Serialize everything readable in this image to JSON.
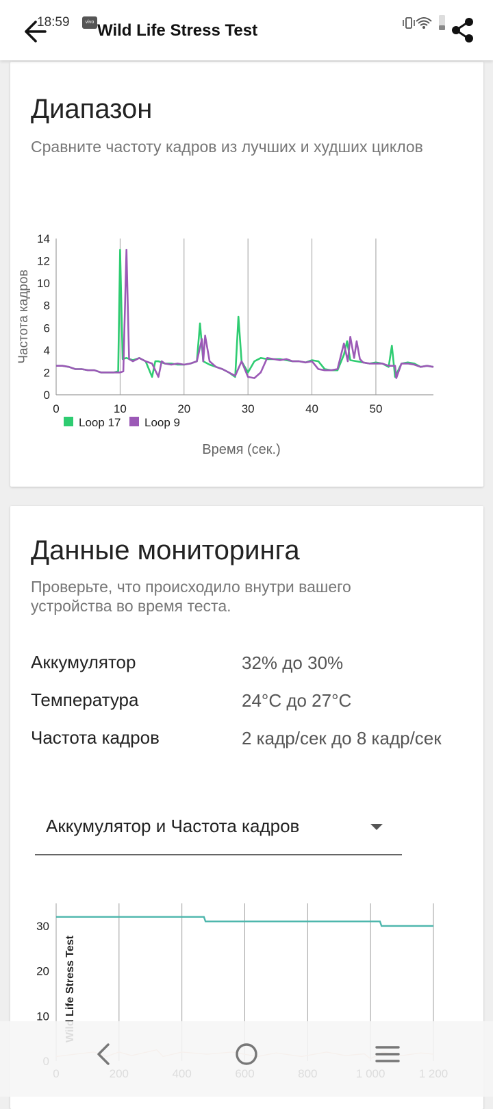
{
  "status_bar": {
    "time": "18:59",
    "badge": "vivo"
  },
  "app_bar": {
    "title": "Wild Life Stress Test"
  },
  "range_card": {
    "title": "Диапазон",
    "subtitle": "Сравните частоту кадров из лучших и худших циклов"
  },
  "monitoring_card": {
    "title": "Данные мониторинга",
    "subtitle": "Проверьте, что происходило внутри вашего устройства во время теста.",
    "rows": [
      {
        "label": "Аккумулятор",
        "value": "32% до 30%"
      },
      {
        "label": "Температура",
        "value": "24°C до 27°C"
      },
      {
        "label": "Частота кадров",
        "value": "2 кадр/сек до 8 кадр/сек"
      }
    ],
    "dropdown": {
      "selected": "Аккумулятор и Частота кадров"
    }
  },
  "colors": {
    "loop17": "#2ecc71",
    "loop9": "#9b59b6",
    "battery": "#4db6ac",
    "fps_overlay": "#f6c7a8"
  },
  "chart_data": [
    {
      "type": "line",
      "xlabel": "Время (сек.)",
      "ylabel": "Частота кадров",
      "xlim": [
        0,
        59
      ],
      "ylim": [
        0,
        14
      ],
      "xticks": [
        0,
        10,
        20,
        30,
        40,
        50
      ],
      "yticks": [
        0,
        2,
        4,
        6,
        8,
        10,
        12,
        14
      ],
      "legend_position": "bottom-left",
      "grid": "vertical",
      "series": [
        {
          "name": "Loop 17",
          "color": "#2ecc71",
          "points": [
            [
              0,
              2.6
            ],
            [
              1,
              2.6
            ],
            [
              2,
              2.5
            ],
            [
              3,
              2.3
            ],
            [
              4,
              2.3
            ],
            [
              5,
              2.2
            ],
            [
              6,
              2.2
            ],
            [
              7,
              2.0
            ],
            [
              8,
              2.0
            ],
            [
              9,
              2.0
            ],
            [
              9.7,
              2.1
            ],
            [
              10,
              13.0
            ],
            [
              10.4,
              3.2
            ],
            [
              11,
              3.3
            ],
            [
              12,
              3.1
            ],
            [
              13,
              3.3
            ],
            [
              14,
              3.0
            ],
            [
              15,
              1.6
            ],
            [
              15.5,
              3.0
            ],
            [
              16,
              3.0
            ],
            [
              17,
              2.8
            ],
            [
              18,
              2.8
            ],
            [
              19,
              2.7
            ],
            [
              20,
              2.7
            ],
            [
              21,
              2.8
            ],
            [
              22,
              3.0
            ],
            [
              22.5,
              6.4
            ],
            [
              23,
              3.0
            ],
            [
              24,
              2.7
            ],
            [
              25,
              2.5
            ],
            [
              26,
              2.3
            ],
            [
              27,
              2.0
            ],
            [
              28,
              1.6
            ],
            [
              28.5,
              7.0
            ],
            [
              29,
              3.0
            ],
            [
              30,
              2.0
            ],
            [
              31,
              3.0
            ],
            [
              32,
              3.3
            ],
            [
              33,
              3.2
            ],
            [
              34,
              3.2
            ],
            [
              35,
              3.2
            ],
            [
              36,
              3.1
            ],
            [
              37,
              3.0
            ],
            [
              38,
              3.0
            ],
            [
              39,
              2.9
            ],
            [
              40,
              3.1
            ],
            [
              41,
              3.0
            ],
            [
              42,
              2.3
            ],
            [
              43,
              2.2
            ],
            [
              44,
              2.2
            ],
            [
              45,
              3.6
            ],
            [
              45.5,
              4.8
            ],
            [
              46,
              3.1
            ],
            [
              47,
              3.0
            ],
            [
              48,
              2.9
            ],
            [
              49,
              2.8
            ],
            [
              50,
              2.9
            ],
            [
              51,
              2.8
            ],
            [
              52,
              2.5
            ],
            [
              52.5,
              4.4
            ],
            [
              53,
              1.6
            ],
            [
              54,
              2.8
            ],
            [
              55,
              2.9
            ],
            [
              56,
              2.8
            ],
            [
              57,
              2.5
            ],
            [
              58,
              2.6
            ],
            [
              59,
              2.5
            ]
          ]
        },
        {
          "name": "Loop 9",
          "color": "#9b59b6",
          "points": [
            [
              0,
              2.6
            ],
            [
              1,
              2.6
            ],
            [
              2,
              2.5
            ],
            [
              3,
              2.3
            ],
            [
              4,
              2.3
            ],
            [
              5,
              2.2
            ],
            [
              6,
              2.2
            ],
            [
              7,
              2.0
            ],
            [
              8,
              2.0
            ],
            [
              9,
              2.0
            ],
            [
              10,
              2.0
            ],
            [
              10.5,
              2.1
            ],
            [
              11,
              13.0
            ],
            [
              11.4,
              3.2
            ],
            [
              12,
              3.0
            ],
            [
              13,
              3.3
            ],
            [
              14,
              3.0
            ],
            [
              15,
              2.8
            ],
            [
              16,
              1.6
            ],
            [
              16.5,
              3.0
            ],
            [
              17,
              2.8
            ],
            [
              18,
              2.7
            ],
            [
              19,
              2.8
            ],
            [
              20,
              2.7
            ],
            [
              21,
              2.8
            ],
            [
              22,
              3.0
            ],
            [
              22.8,
              5.0
            ],
            [
              23,
              3.0
            ],
            [
              23.3,
              5.3
            ],
            [
              24,
              3.0
            ],
            [
              25,
              2.5
            ],
            [
              26,
              2.3
            ],
            [
              27,
              2.0
            ],
            [
              28,
              1.7
            ],
            [
              29,
              3.0
            ],
            [
              30,
              1.6
            ],
            [
              31,
              1.5
            ],
            [
              32,
              2.0
            ],
            [
              33,
              3.3
            ],
            [
              34,
              3.2
            ],
            [
              35,
              3.1
            ],
            [
              36,
              3.2
            ],
            [
              37,
              3.0
            ],
            [
              38,
              3.0
            ],
            [
              39,
              2.9
            ],
            [
              40,
              3.0
            ],
            [
              41,
              2.3
            ],
            [
              42,
              2.2
            ],
            [
              43,
              2.2
            ],
            [
              44,
              2.3
            ],
            [
              45,
              4.6
            ],
            [
              45.6,
              3.0
            ],
            [
              46,
              5.2
            ],
            [
              46.6,
              3.3
            ],
            [
              47,
              4.8
            ],
            [
              47.5,
              3.2
            ],
            [
              48,
              2.9
            ],
            [
              49,
              2.8
            ],
            [
              50,
              2.8
            ],
            [
              51,
              2.8
            ],
            [
              52,
              2.6
            ],
            [
              53,
              2.6
            ],
            [
              53.2,
              1.5
            ],
            [
              54,
              2.8
            ],
            [
              55,
              2.8
            ],
            [
              56,
              2.7
            ],
            [
              57,
              2.5
            ],
            [
              58,
              2.6
            ],
            [
              59,
              2.5
            ]
          ]
        }
      ]
    },
    {
      "type": "line",
      "title": "",
      "ylabel": "Wild Life Stress Test",
      "xlim": [
        0,
        1200
      ],
      "ylim": [
        0,
        35
      ],
      "xticks": [
        0,
        200,
        400,
        600,
        800,
        1000,
        1200
      ],
      "xtick_labels": [
        "0",
        "200",
        "400",
        "600",
        "800",
        "1 000",
        "1 200"
      ],
      "yticks": [
        0,
        10,
        20,
        30
      ],
      "grid": "vertical",
      "series": [
        {
          "color": "#4db6ac",
          "points": [
            [
              0,
              32
            ],
            [
              470,
              32
            ],
            [
              475,
              31
            ],
            [
              1030,
              31
            ],
            [
              1035,
              30
            ],
            [
              1200,
              30
            ]
          ]
        },
        {
          "color": "#f6c7a8",
          "points": [
            [
              0,
              1
            ],
            [
              60,
              1.5
            ],
            [
              120,
              2
            ],
            [
              160,
              1
            ],
            [
              200,
              2
            ],
            [
              240,
              1.2
            ],
            [
              320,
              2.5
            ],
            [
              340,
              1
            ],
            [
              400,
              2
            ],
            [
              480,
              1.5
            ],
            [
              560,
              2
            ],
            [
              640,
              1
            ],
            [
              700,
              1.8
            ],
            [
              780,
              1
            ],
            [
              860,
              2
            ],
            [
              920,
              1.2
            ],
            [
              980,
              1.6
            ],
            [
              1000,
              0.5
            ],
            [
              1040,
              2
            ],
            [
              1100,
              1.2
            ],
            [
              1160,
              1.8
            ],
            [
              1200,
              1.5
            ]
          ]
        }
      ]
    }
  ]
}
